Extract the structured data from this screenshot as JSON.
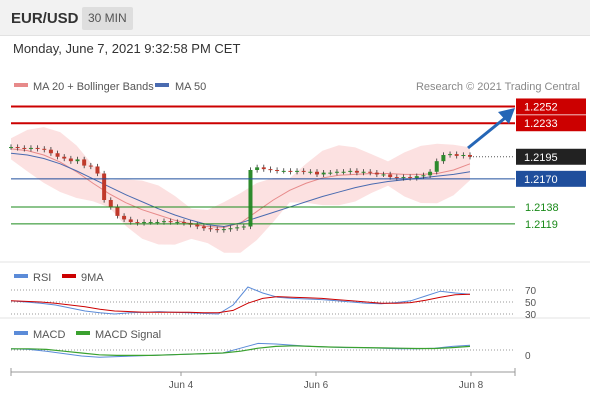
{
  "header": {
    "symbol": "EUR/USD",
    "timeframe": "30 MIN",
    "datetime": "Monday, June 7, 2021 9:32:58 PM CET"
  },
  "legend": {
    "ma20": "MA 20 + Bollinger Bands",
    "ma50": "MA 50",
    "credit": "Research © 2021 Trading Central"
  },
  "levels": [
    {
      "label": "1.2252",
      "kind": "resistance",
      "value": 1.2252
    },
    {
      "label": "1.2233",
      "kind": "resistance",
      "value": 1.2233
    },
    {
      "label": "1.2195",
      "kind": "price",
      "value": 1.2195
    },
    {
      "label": "1.2170",
      "kind": "pivot",
      "value": 1.217
    },
    {
      "label": "1.2138",
      "kind": "support",
      "value": 1.2138
    },
    {
      "label": "1.2119",
      "kind": "support",
      "value": 1.2119
    }
  ],
  "rsi_panel": {
    "rsi_label": "RSI",
    "ma_label": "9MA",
    "levels": [
      "70",
      "50",
      "30"
    ]
  },
  "macd_panel": {
    "macd_label": "MACD",
    "signal_label": "MACD Signal",
    "zero": "0"
  },
  "xaxis": {
    "ticks": [
      "Jun 4",
      "Jun 6",
      "Jun 8"
    ]
  },
  "colors": {
    "resistance": "#cc0000",
    "pivot": "#1f4e9c",
    "support": "#1a8a1a",
    "price": "#222222",
    "band": "#f9c9c9",
    "ma20": "#e78a8a",
    "ma50": "#4a6bb0",
    "candle_up": "#2d8a2d",
    "candle_down": "#c0392b",
    "rsi": "#5b8bd8",
    "rsi_ma": "#cc0000",
    "macd": "#5b8bd8",
    "signal": "#3aa12f"
  },
  "chart_data": {
    "type": "candlestick",
    "x_ticks": [
      "Jun 4",
      "Jun 6",
      "Jun 8"
    ],
    "close": [
      1.2206,
      1.2205,
      1.2204,
      1.2205,
      1.2204,
      1.2203,
      1.2199,
      1.2195,
      1.2193,
      1.219,
      1.2192,
      1.2185,
      1.2184,
      1.2176,
      1.2146,
      1.2138,
      1.2128,
      1.2124,
      1.2121,
      1.212,
      1.2121,
      1.2121,
      1.2121,
      1.2122,
      1.2121,
      1.2121,
      1.212,
      1.2118,
      1.2116,
      1.2114,
      1.2113,
      1.2112,
      1.2113,
      1.2114,
      1.2115,
      1.2116,
      1.218,
      1.2183,
      1.2181,
      1.218,
      1.2179,
      1.2179,
      1.2178,
      1.2179,
      1.2178,
      1.2178,
      1.2175,
      1.2177,
      1.2177,
      1.2178,
      1.2178,
      1.2179,
      1.2177,
      1.2178,
      1.2177,
      1.2175,
      1.2175,
      1.2172,
      1.2171,
      1.2172,
      1.2171,
      1.2173,
      1.2174,
      1.2178,
      1.219,
      1.2197,
      1.2198,
      1.2196,
      1.2197,
      1.2195
    ],
    "ma20": [
      1.2204,
      1.2202,
      1.2197,
      1.2189,
      1.2178,
      1.2165,
      1.2153,
      1.2143,
      1.2135,
      1.2129,
      1.2123,
      1.2119,
      1.2116,
      1.2115,
      1.212,
      1.2133,
      1.2146,
      1.2157,
      1.2165,
      1.2171,
      1.2174,
      1.2175,
      1.2176,
      1.2176,
      1.2175,
      1.2175,
      1.2176,
      1.218,
      1.2187
    ],
    "ma50": [
      1.2199,
      1.2197,
      1.2193,
      1.2187,
      1.2179,
      1.217,
      1.2161,
      1.2152,
      1.2144,
      1.2136,
      1.2129,
      1.2123,
      1.2118,
      1.2116,
      1.212,
      1.2126,
      1.2132,
      1.2138,
      1.2144,
      1.215,
      1.2155,
      1.216,
      1.2164,
      1.2167,
      1.2169,
      1.2171,
      1.2173,
      1.2175,
      1.2178
    ],
    "rsi": [
      52,
      50,
      48,
      45,
      40,
      35,
      32,
      30,
      32,
      33,
      34,
      33,
      32,
      31,
      30,
      45,
      75,
      65,
      58,
      56,
      55,
      54,
      52,
      50,
      48,
      47,
      49,
      52,
      60,
      68,
      65,
      63
    ],
    "rsi_ma": [
      52,
      51,
      50,
      48,
      45,
      42,
      38,
      35,
      34,
      33,
      33,
      33,
      33,
      32,
      32,
      36,
      48,
      56,
      59,
      58,
      57,
      56,
      54,
      52,
      50,
      48,
      48,
      49,
      53,
      58,
      62,
      63
    ],
    "macd": [
      0.2,
      0.1,
      -0.2,
      -0.6,
      -1.0,
      -1.2,
      -1.1,
      -1.0,
      -0.9,
      -0.8,
      -0.7,
      -0.6,
      -0.5,
      0.3,
      1.1,
      1.0,
      0.8,
      0.6,
      0.5,
      0.4,
      0.4,
      0.3,
      0.2,
      0.2,
      0.3,
      0.6,
      0.8
    ],
    "signal": [
      0.2,
      0.2,
      0.1,
      -0.2,
      -0.5,
      -0.8,
      -0.9,
      -0.9,
      -0.9,
      -0.8,
      -0.7,
      -0.6,
      -0.5,
      -0.2,
      0.3,
      0.6,
      0.7,
      0.6,
      0.5,
      0.45,
      0.4,
      0.35,
      0.3,
      0.25,
      0.25,
      0.4,
      0.6
    ],
    "ylim": [
      1.2095,
      1.2265
    ]
  }
}
